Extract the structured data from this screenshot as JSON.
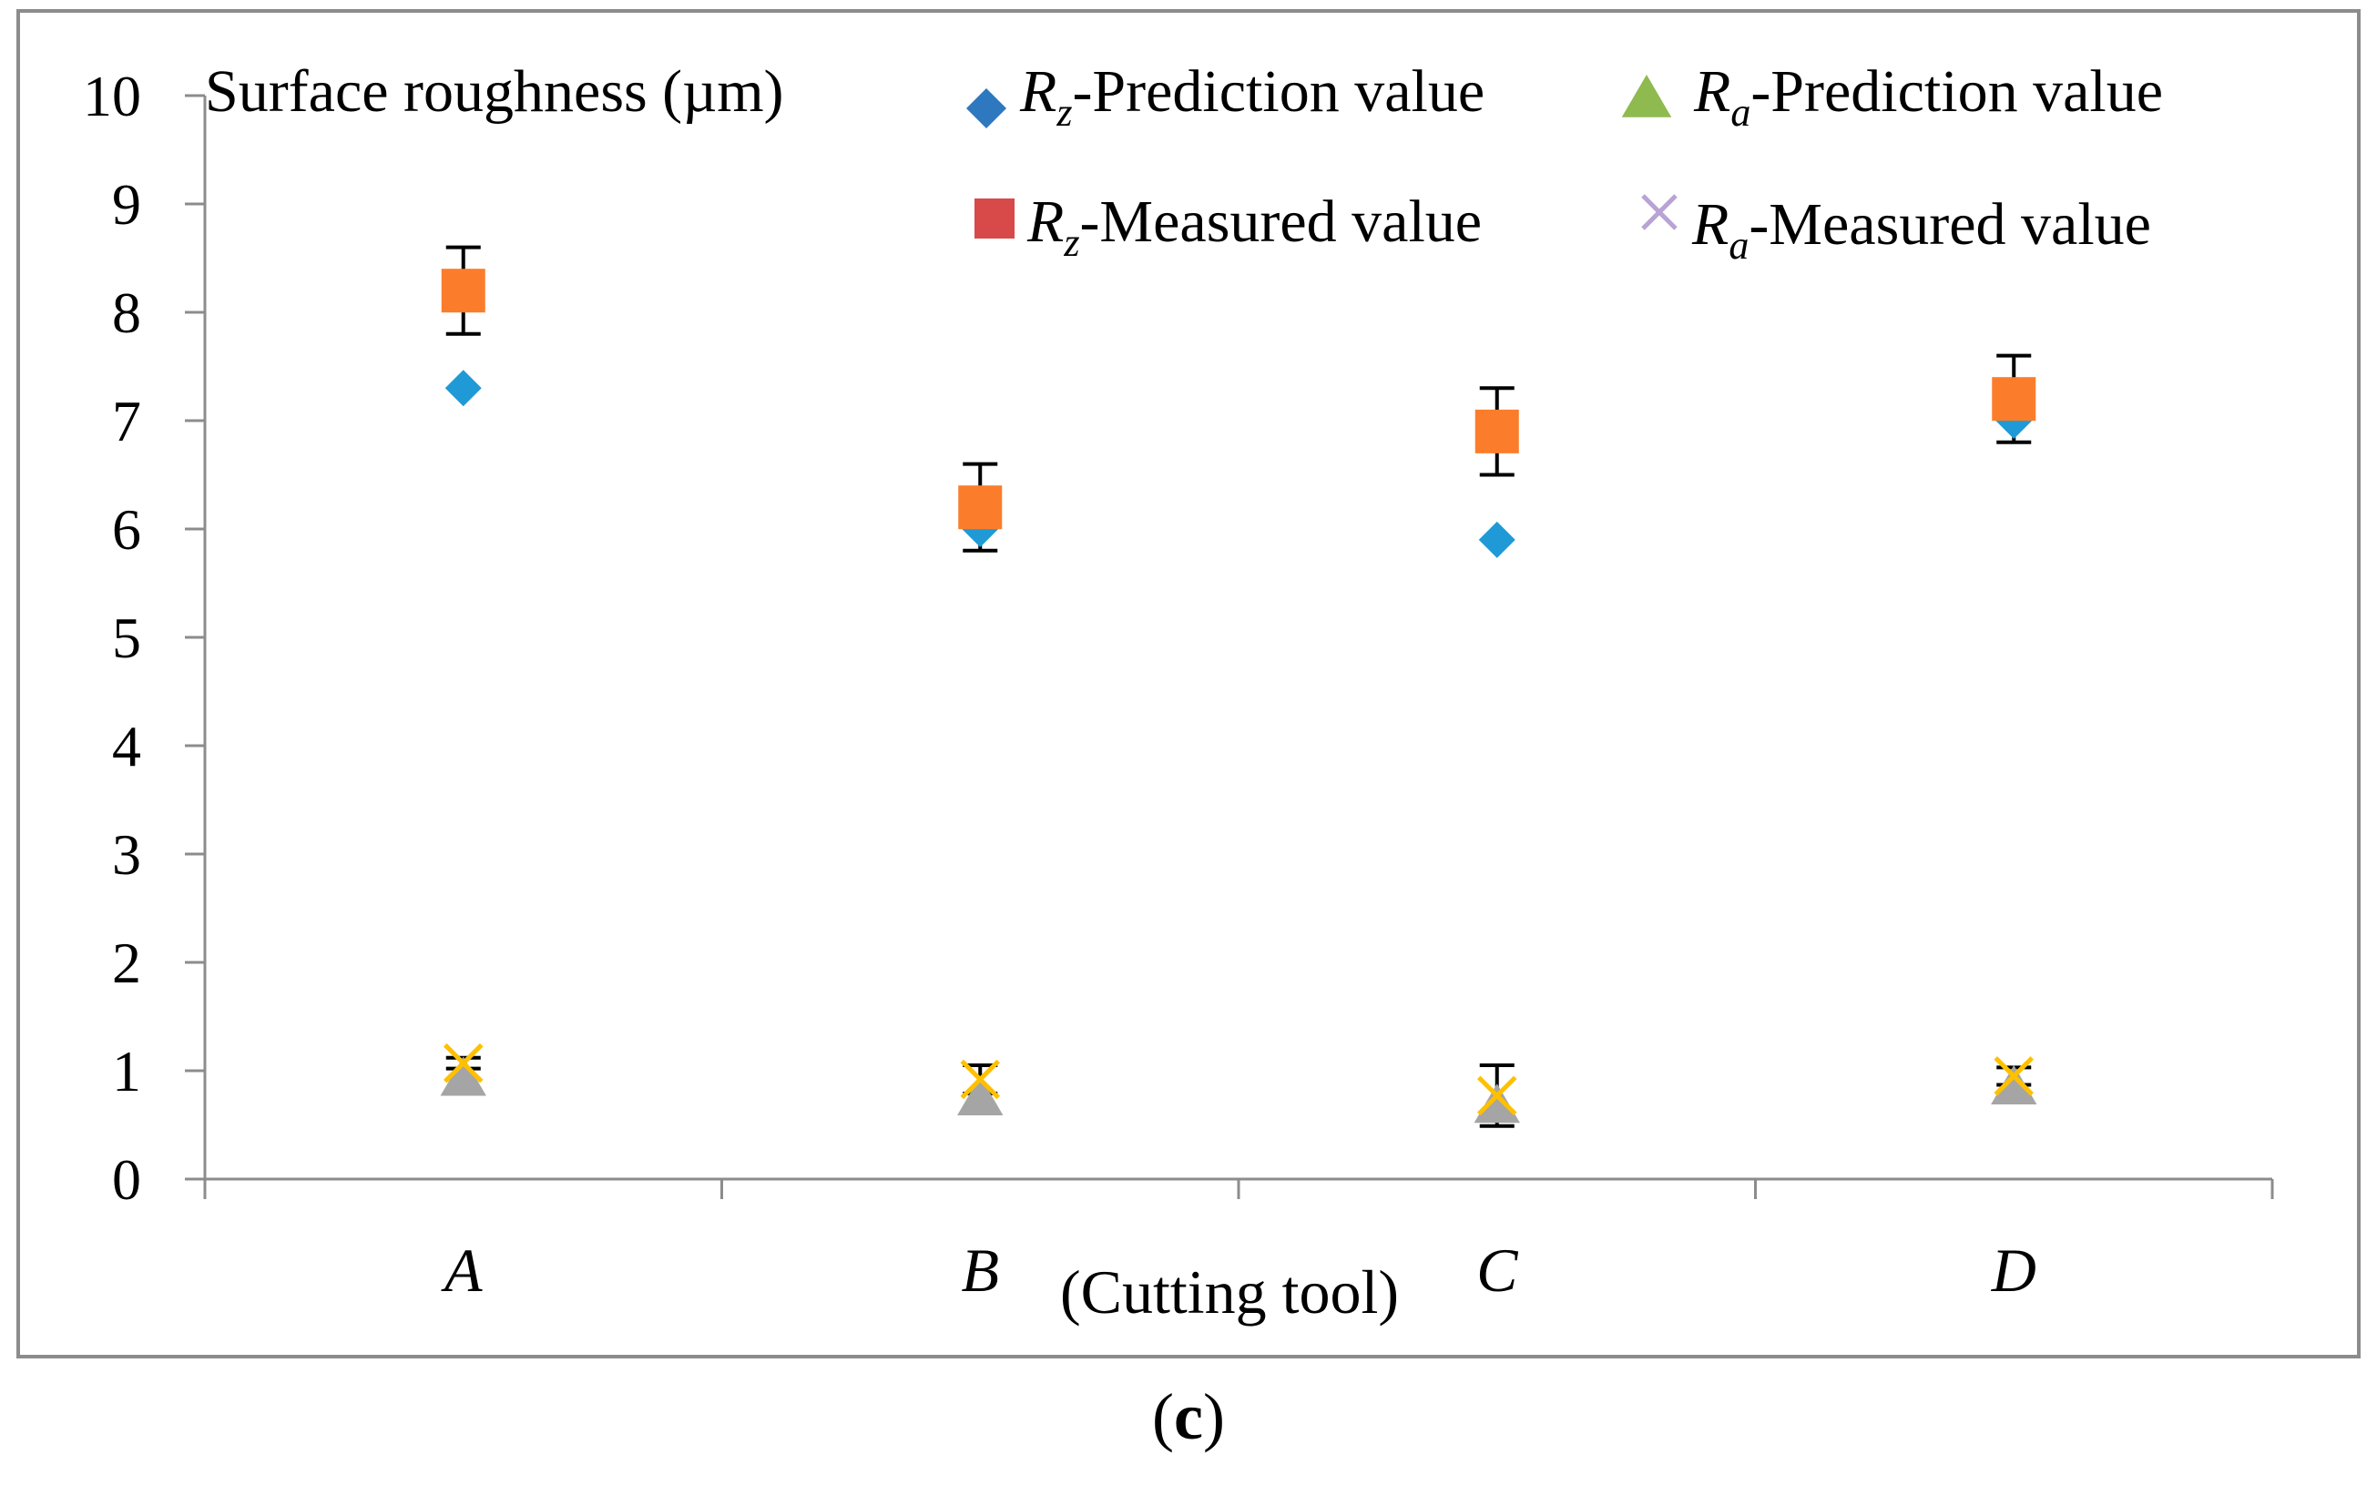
{
  "chart_data": {
    "type": "scatter",
    "ylabel": "Surface roughness (µm)",
    "xlabel": "(Cutting tool)",
    "categories": [
      "A",
      "B",
      "C",
      "D"
    ],
    "ylim": [
      0,
      10
    ],
    "yticks": [
      "0",
      "1",
      "2",
      "3",
      "4",
      "5",
      "6",
      "7",
      "8",
      "9",
      "10"
    ],
    "grid": false,
    "legend_position": "top-right",
    "series": [
      {
        "key": "rz_pred",
        "name_main": "R",
        "name_sub": "z",
        "name_rest": "-Prediction value",
        "marker": "diamond",
        "color": "#1f9ad6",
        "legend_color": "#2e78c0",
        "values": [
          7.3,
          6.0,
          5.9,
          7.0
        ]
      },
      {
        "key": "ra_pred",
        "name_main": "R",
        "name_sub": "a",
        "name_rest": "-Prediction value",
        "marker": "triangle",
        "color": "#a5a5a5",
        "legend_color": "#8fba4f",
        "values": [
          0.93,
          0.75,
          0.68,
          0.85
        ]
      },
      {
        "key": "rz_meas",
        "name_main": "R",
        "name_sub": "z",
        "name_rest": "-Measured value",
        "marker": "square",
        "color": "#fb7d2b",
        "legend_color": "#d8494a",
        "values": [
          8.2,
          6.2,
          6.9,
          7.2
        ],
        "error": [
          0.4,
          0.4,
          0.4,
          0.4
        ]
      },
      {
        "key": "ra_meas",
        "name_main": "R",
        "name_sub": "a",
        "name_rest": "-Measured value",
        "marker": "x",
        "color": "#ffc000",
        "legend_color": "#b9a3d4",
        "values": [
          1.07,
          0.92,
          0.77,
          0.95
        ],
        "error": [
          0.05,
          0.13,
          0.28,
          0.08
        ]
      }
    ]
  },
  "panel_label": "(c)"
}
